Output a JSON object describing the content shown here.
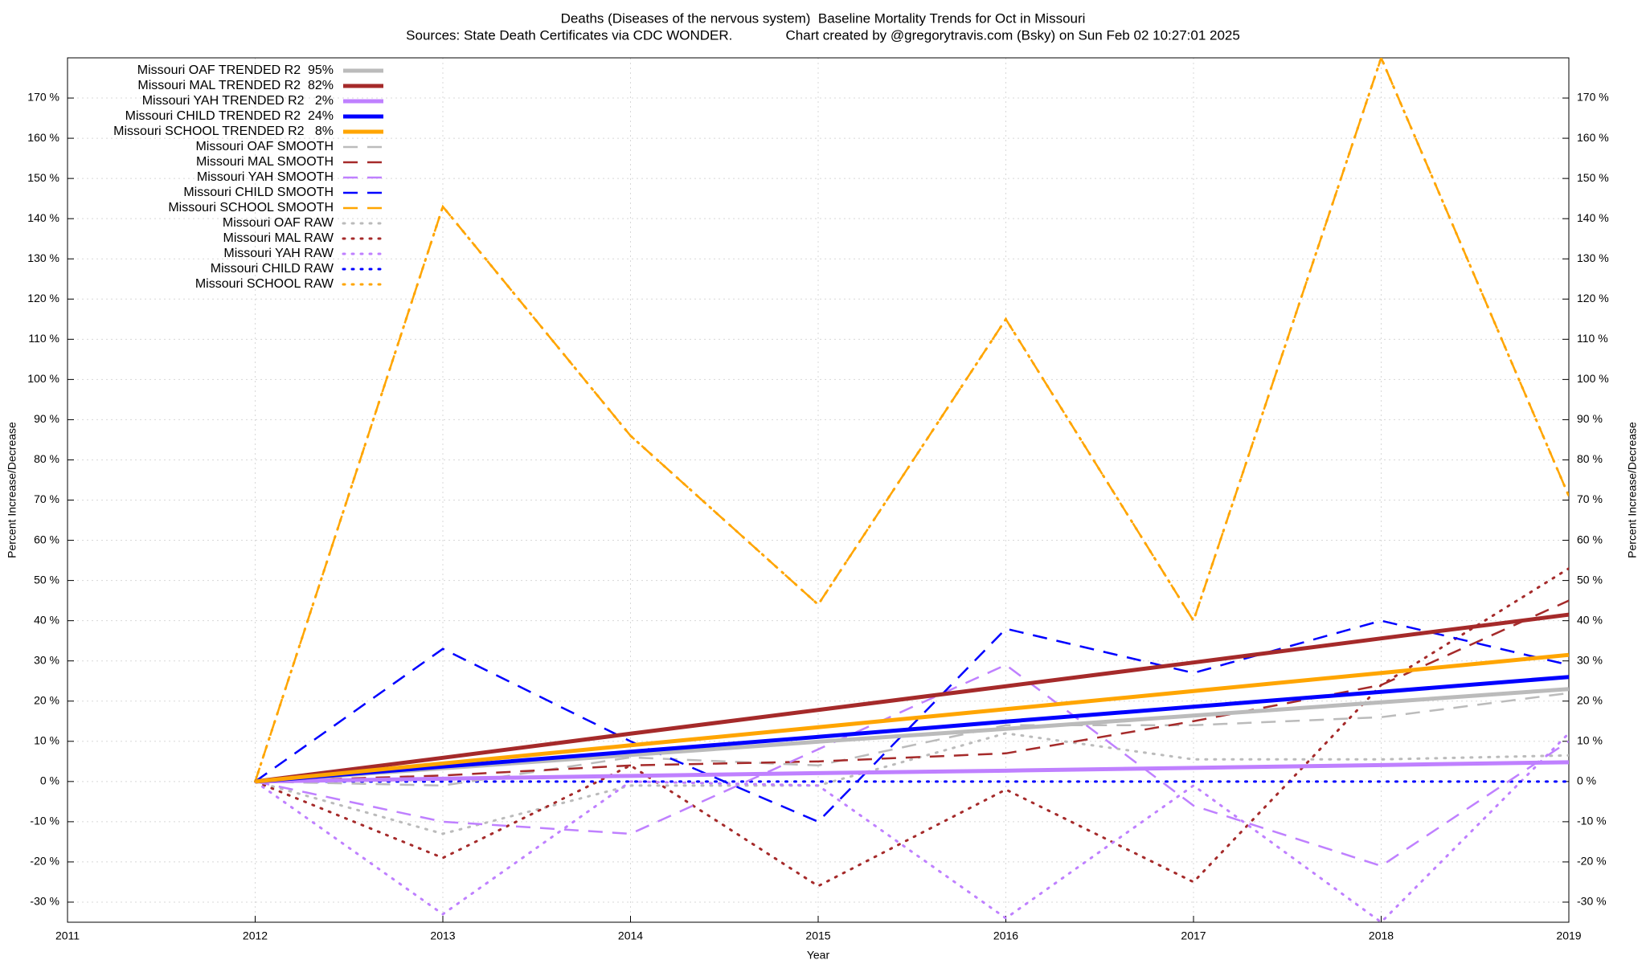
{
  "chart_data": {
    "type": "line",
    "title": "Deaths (Diseases of the nervous system)  Baseline Mortality Trends for Oct in Missouri",
    "subtitle": "Sources: State Death Certificates via CDC WONDER.              Chart created by @gregorytravis.com (Bsky) on Sun Feb 02 10:27:01 2025",
    "x_label": "Year",
    "y_label": "Percent Increase/Decrease",
    "y2_label": "Percent Increase/Decrease",
    "x": [
      2012,
      2013,
      2014,
      2015,
      2016,
      2017,
      2018,
      2019
    ],
    "xlim": [
      2011,
      2019
    ],
    "xticks": [
      2011,
      2012,
      2013,
      2014,
      2015,
      2016,
      2017,
      2018,
      2019
    ],
    "ylim": [
      -35,
      180
    ],
    "yticks": [
      {
        "value": -30,
        "label": "-30 %"
      },
      {
        "value": -20,
        "label": "-20 %"
      },
      {
        "value": -10,
        "label": "-10 %"
      },
      {
        "value": 0,
        "label": "0 %"
      },
      {
        "value": 10,
        "label": "10 %"
      },
      {
        "value": 20,
        "label": "20 %"
      },
      {
        "value": 30,
        "label": "30 %"
      },
      {
        "value": 40,
        "label": "40 %"
      },
      {
        "value": 50,
        "label": "50 %"
      },
      {
        "value": 60,
        "label": "60 %"
      },
      {
        "value": 70,
        "label": "70 %"
      },
      {
        "value": 80,
        "label": "80 %"
      },
      {
        "value": 90,
        "label": "90 %"
      },
      {
        "value": 100,
        "label": "100 %"
      },
      {
        "value": 110,
        "label": "110 %"
      },
      {
        "value": 120,
        "label": "120 %"
      },
      {
        "value": 130,
        "label": "130 %"
      },
      {
        "value": 140,
        "label": "140 %"
      },
      {
        "value": 150,
        "label": "150 %"
      },
      {
        "value": 160,
        "label": "160 %"
      },
      {
        "value": 170,
        "label": "170 %"
      }
    ],
    "grid": true,
    "legend": "top-left",
    "series": [
      {
        "name": "Missouri OAF TRENDED R2  95%",
        "color": "#bbbbbb",
        "style": "solid",
        "values": [
          0,
          3.3,
          6.6,
          9.9,
          13.1,
          16.4,
          19.7,
          23
        ]
      },
      {
        "name": "Missouri MAL TRENDED R2  82%",
        "color": "#a52a2a",
        "style": "solid",
        "values": [
          0,
          5.9,
          11.9,
          17.8,
          23.7,
          29.6,
          35.6,
          41.5
        ]
      },
      {
        "name": "Missouri YAH TRENDED R2   2%",
        "color": "#bf80ff",
        "style": "solid",
        "values": [
          0,
          0.7,
          1.4,
          2.1,
          2.7,
          3.4,
          4.1,
          4.8
        ]
      },
      {
        "name": "Missouri CHILD TRENDED R2  24%",
        "color": "#0000ff",
        "style": "solid",
        "values": [
          0,
          3.7,
          7.4,
          11.1,
          14.9,
          18.6,
          22.3,
          26
        ]
      },
      {
        "name": "Missouri SCHOOL TRENDED R2   8%",
        "color": "#ffa500",
        "style": "solid",
        "values": [
          0,
          4.5,
          9,
          13.5,
          18,
          22.5,
          27,
          31.5
        ]
      },
      {
        "name": "Missouri OAF SMOOTH",
        "color": "#bbbbbb",
        "style": "dashed",
        "values": [
          0,
          -1,
          6,
          4,
          14,
          14,
          16,
          22
        ]
      },
      {
        "name": "Missouri MAL SMOOTH",
        "color": "#a52a2a",
        "style": "dashed",
        "values": [
          0,
          1.5,
          4,
          5,
          7,
          15,
          24,
          45
        ]
      },
      {
        "name": "Missouri YAH SMOOTH",
        "color": "#bf80ff",
        "style": "dashed",
        "values": [
          0,
          -10,
          -13,
          8,
          29,
          -6,
          -21,
          10
        ]
      },
      {
        "name": "Missouri CHILD SMOOTH",
        "color": "#0000ff",
        "style": "dashed",
        "values": [
          0,
          33,
          10,
          -10,
          38,
          27,
          40,
          29
        ]
      },
      {
        "name": "Missouri SCHOOL SMOOTH",
        "color": "#ffa500",
        "style": "dashed",
        "values": [
          0,
          143,
          86,
          44,
          115,
          40,
          180,
          71
        ]
      },
      {
        "name": "Missouri OAF RAW",
        "color": "#bbbbbb",
        "style": "dotted",
        "values": [
          0,
          -13,
          -1,
          -1,
          12,
          5.5,
          5.5,
          6.5
        ]
      },
      {
        "name": "Missouri MAL RAW",
        "color": "#a52a2a",
        "style": "dotted",
        "values": [
          0,
          -19,
          4,
          -26,
          -2,
          -25,
          24,
          53
        ]
      },
      {
        "name": "Missouri YAH RAW",
        "color": "#bf80ff",
        "style": "dotted",
        "values": [
          0,
          -33,
          0,
          -1,
          -34,
          -1,
          -35,
          12
        ]
      },
      {
        "name": "Missouri CHILD RAW",
        "color": "#0000ff",
        "style": "dotted",
        "values": [
          0,
          0,
          0,
          0,
          0,
          0,
          0,
          0
        ]
      },
      {
        "name": "Missouri SCHOOL RAW",
        "color": "#ffa500",
        "style": "dotted",
        "values": [
          0,
          143,
          86,
          44,
          115,
          40,
          180,
          71
        ]
      }
    ]
  }
}
